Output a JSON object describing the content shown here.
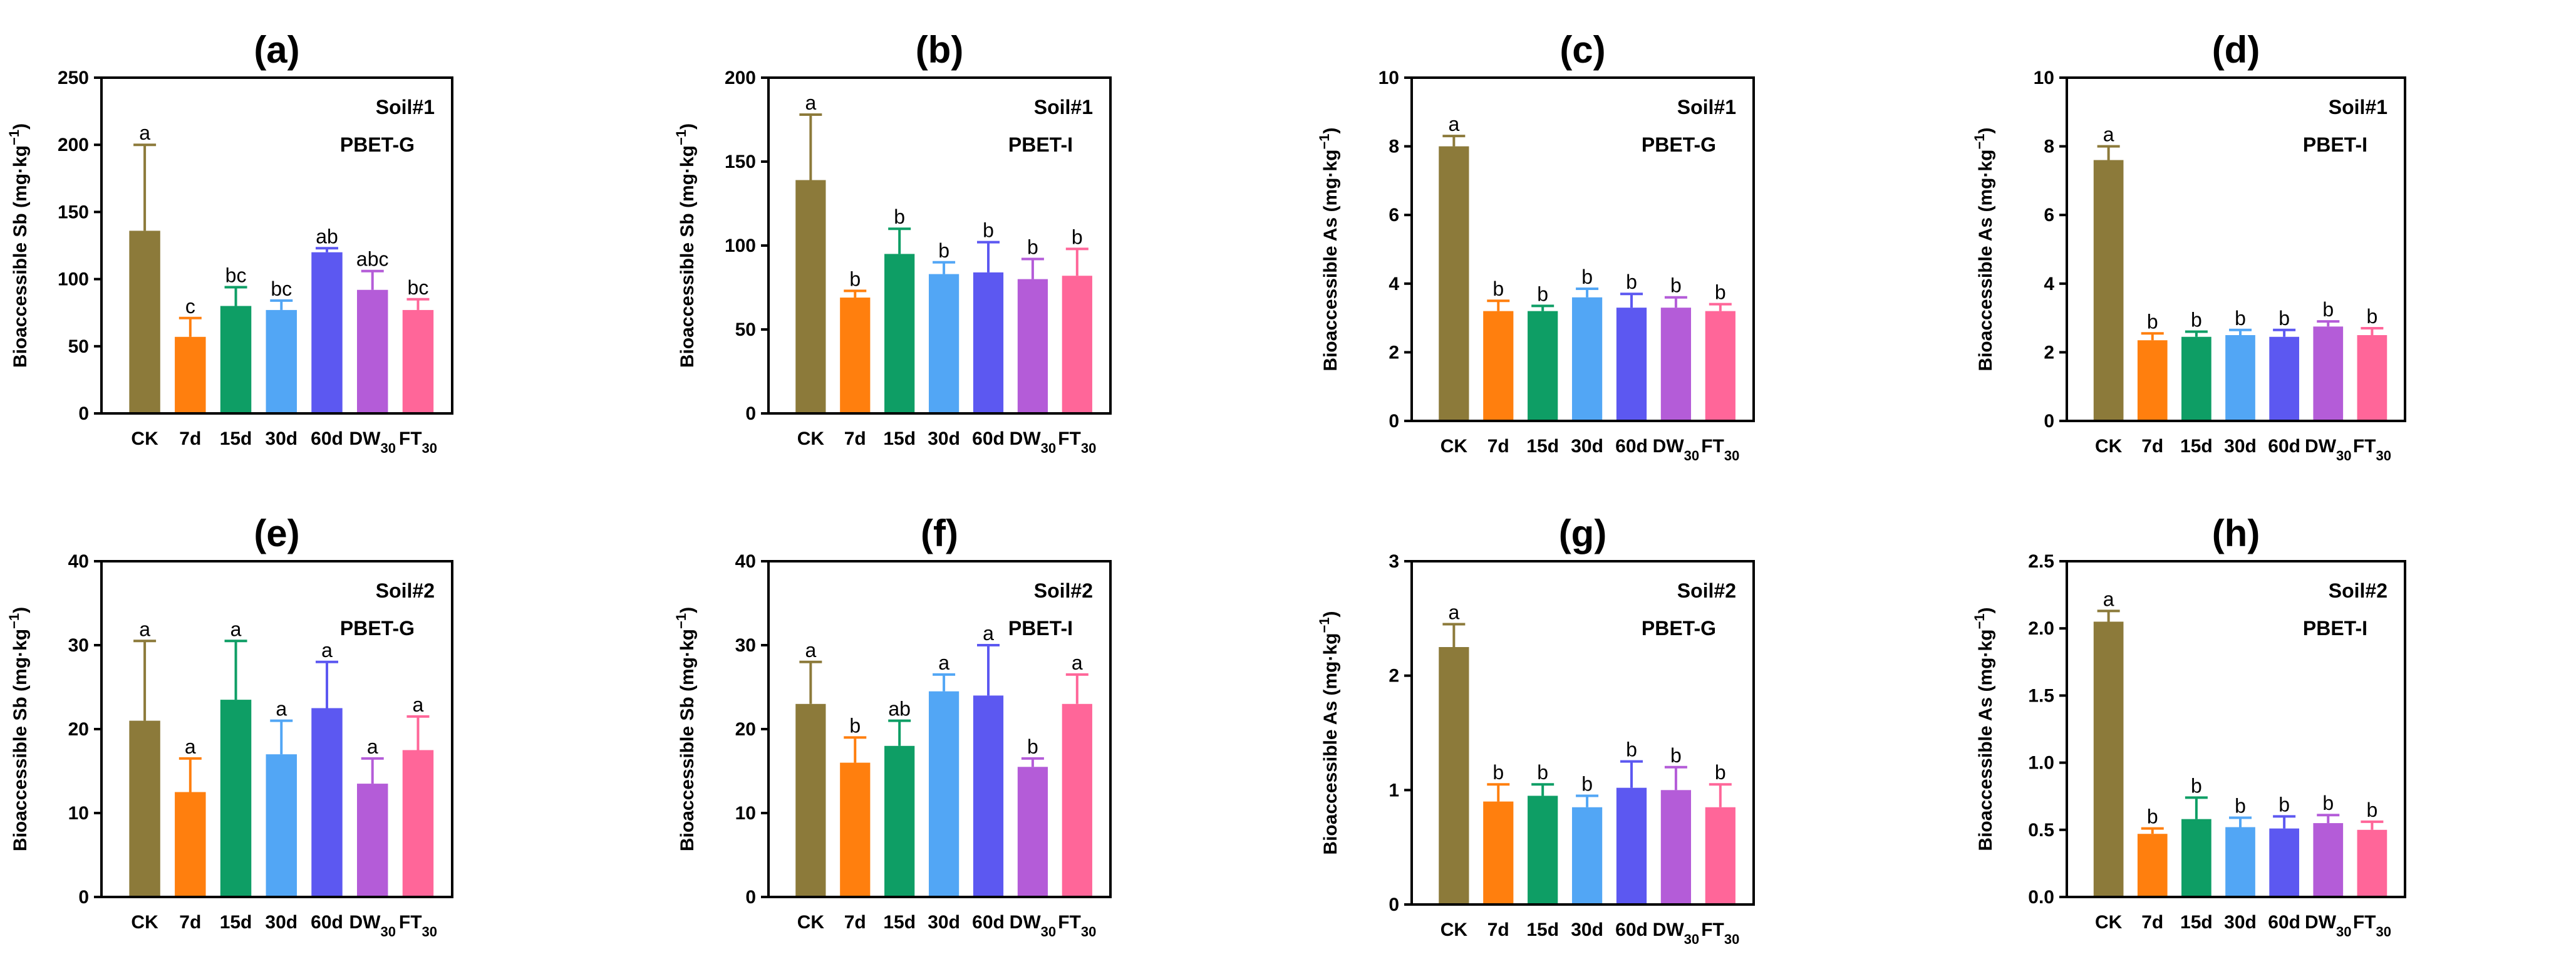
{
  "colors": {
    "CK": "#8C7A3A",
    "7d": "#FF7F0E",
    "15d": "#0E9E65",
    "30d": "#52A6F5",
    "60d": "#5C58F1",
    "DW30": "#B45CD8",
    "FT30": "#FF6699"
  },
  "category_labels": [
    {
      "main": "CK",
      "sub": ""
    },
    {
      "main": "7d",
      "sub": ""
    },
    {
      "main": "15d",
      "sub": ""
    },
    {
      "main": "30d",
      "sub": ""
    },
    {
      "main": "60d",
      "sub": ""
    },
    {
      "main": "DW",
      "sub": "30"
    },
    {
      "main": "FT",
      "sub": "30"
    }
  ],
  "chart_data": [
    {
      "type": "bar",
      "title": "(a)",
      "soil": "Soil#1",
      "method": "PBET-G",
      "ylabel": "Bioaccessible Sb (mg·kg",
      "ylabel_sup": "−1",
      "ylabel_end": ")",
      "categories": [
        "CK",
        "7d",
        "15d",
        "30d",
        "60d",
        "DW30",
        "FT30"
      ],
      "values": [
        136,
        57,
        80,
        77,
        120,
        92,
        77
      ],
      "errors": [
        64,
        14,
        14,
        7,
        3,
        14,
        8
      ],
      "letters": [
        "a",
        "c",
        "bc",
        "bc",
        "ab",
        "abc",
        "bc"
      ],
      "ylim": [
        0,
        250
      ],
      "yticks": [
        0,
        50,
        100,
        150,
        200,
        250
      ]
    },
    {
      "type": "bar",
      "title": "(b)",
      "soil": "Soil#1",
      "method": "PBET-I",
      "ylabel": "Bioaccessible Sb (mg·kg",
      "ylabel_sup": "−1",
      "ylabel_end": ")",
      "categories": [
        "CK",
        "7d",
        "15d",
        "30d",
        "60d",
        "DW30",
        "FT30"
      ],
      "values": [
        139,
        69,
        95,
        83,
        84,
        80,
        82
      ],
      "errors": [
        39,
        4,
        15,
        7,
        18,
        12,
        16
      ],
      "letters": [
        "a",
        "b",
        "b",
        "b",
        "b",
        "b",
        "b"
      ],
      "ylim": [
        0,
        200
      ],
      "yticks": [
        0,
        50,
        100,
        150,
        200
      ]
    },
    {
      "type": "bar",
      "title": "(c)",
      "soil": "Soil#1",
      "method": "PBET-G",
      "ylabel": "Bioaccessible As (mg·kg",
      "ylabel_sup": "−1",
      "ylabel_end": ")",
      "categories": [
        "CK",
        "7d",
        "15d",
        "30d",
        "60d",
        "DW30",
        "FT30"
      ],
      "values": [
        8.0,
        3.2,
        3.2,
        3.6,
        3.3,
        3.3,
        3.2
      ],
      "errors": [
        0.3,
        0.3,
        0.15,
        0.25,
        0.4,
        0.3,
        0.2
      ],
      "letters": [
        "a",
        "b",
        "b",
        "b",
        "b",
        "b",
        "b"
      ],
      "ylim": [
        0,
        10
      ],
      "yticks": [
        0,
        2,
        4,
        6,
        8,
        10
      ]
    },
    {
      "type": "bar",
      "title": "(d)",
      "soil": "Soil#1",
      "method": "PBET-I",
      "ylabel": "Bioaccessible As (mg·kg",
      "ylabel_sup": "−1",
      "ylabel_end": ")",
      "categories": [
        "CK",
        "7d",
        "15d",
        "30d",
        "60d",
        "DW30",
        "FT30"
      ],
      "values": [
        7.6,
        2.35,
        2.45,
        2.5,
        2.45,
        2.75,
        2.5
      ],
      "errors": [
        0.4,
        0.2,
        0.15,
        0.15,
        0.2,
        0.15,
        0.2
      ],
      "letters": [
        "a",
        "b",
        "b",
        "b",
        "b",
        "b",
        "b"
      ],
      "ylim": [
        0,
        10
      ],
      "yticks": [
        0,
        2,
        4,
        6,
        8,
        10
      ]
    },
    {
      "type": "bar",
      "title": "(e)",
      "soil": "Soil#2",
      "method": "PBET-G",
      "ylabel": "Bioaccessible Sb (mg·kg",
      "ylabel_sup": "−1",
      "ylabel_end": ")",
      "categories": [
        "CK",
        "7d",
        "15d",
        "30d",
        "60d",
        "DW30",
        "FT30"
      ],
      "values": [
        21,
        12.5,
        23.5,
        17,
        22.5,
        13.5,
        17.5
      ],
      "errors": [
        9.5,
        4,
        7,
        4,
        5.5,
        3,
        4
      ],
      "letters": [
        "a",
        "a",
        "a",
        "a",
        "a",
        "a",
        "a"
      ],
      "ylim": [
        0,
        40
      ],
      "yticks": [
        0,
        10,
        20,
        30,
        40
      ]
    },
    {
      "type": "bar",
      "title": "(f)",
      "soil": "Soil#2",
      "method": "PBET-I",
      "ylabel": "Bioaccessible Sb (mg·kg",
      "ylabel_sup": "−1",
      "ylabel_end": ")",
      "categories": [
        "CK",
        "7d",
        "15d",
        "30d",
        "60d",
        "DW30",
        "FT30"
      ],
      "values": [
        23,
        16,
        18,
        24.5,
        24,
        15.5,
        23
      ],
      "errors": [
        5,
        3,
        3,
        2,
        6,
        1,
        3.5
      ],
      "letters": [
        "a",
        "b",
        "ab",
        "a",
        "a",
        "b",
        "a"
      ],
      "ylim": [
        0,
        40
      ],
      "yticks": [
        0,
        10,
        20,
        30,
        40
      ]
    },
    {
      "type": "bar",
      "title": "(g)",
      "soil": "Soil#2",
      "method": "PBET-G",
      "ylabel": "Bioaccessible As (mg·kg",
      "ylabel_sup": "−1",
      "ylabel_end": ")",
      "categories": [
        "CK",
        "7d",
        "15d",
        "30d",
        "60d",
        "DW30",
        "FT30"
      ],
      "values": [
        2.25,
        0.9,
        0.95,
        0.85,
        1.02,
        1.0,
        0.85
      ],
      "errors": [
        0.2,
        0.15,
        0.1,
        0.1,
        0.23,
        0.2,
        0.2
      ],
      "letters": [
        "a",
        "b",
        "b",
        "b",
        "b",
        "b",
        "b"
      ],
      "ylim": [
        0,
        3
      ],
      "yticks": [
        0,
        1,
        2,
        3
      ]
    },
    {
      "type": "bar",
      "title": "(h)",
      "soil": "Soil#2",
      "method": "PBET-I",
      "ylabel": "Bioaccessible As (mg·kg",
      "ylabel_sup": "−1",
      "ylabel_end": ")",
      "categories": [
        "CK",
        "7d",
        "15d",
        "30d",
        "60d",
        "DW30",
        "FT30"
      ],
      "values": [
        2.05,
        0.47,
        0.58,
        0.52,
        0.51,
        0.55,
        0.5
      ],
      "errors": [
        0.08,
        0.04,
        0.16,
        0.07,
        0.09,
        0.06,
        0.06
      ],
      "letters": [
        "a",
        "b",
        "b",
        "b",
        "b",
        "b",
        "b"
      ],
      "ylim": [
        0,
        2.5
      ],
      "yticks": [
        "0.0",
        "0.5",
        "1.0",
        "1.5",
        "2.0",
        "2.5"
      ]
    }
  ]
}
